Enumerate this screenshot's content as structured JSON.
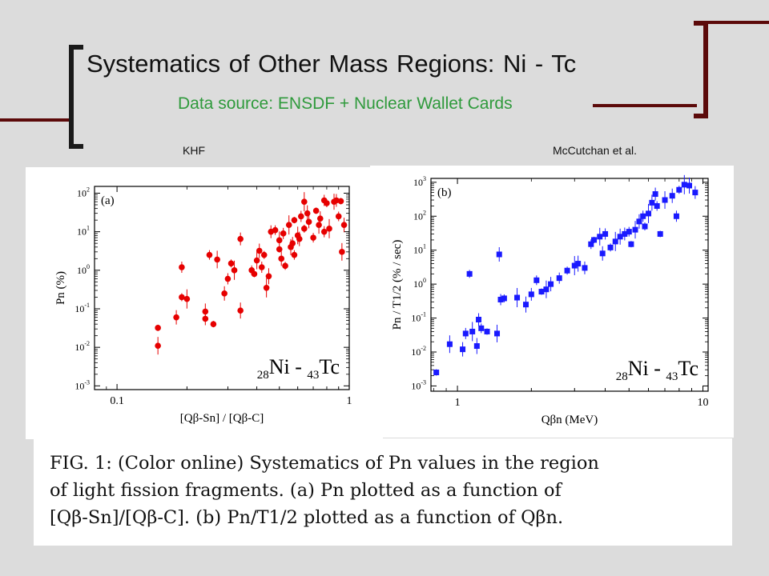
{
  "slide": {
    "title": "Systematics of Other Mass Regions: Ni - Tc",
    "subtitle": "Data source: ENSDF + Nuclear Wallet Cards",
    "colors": {
      "accent_bar": "#5c0a0a",
      "subtitle": "#2f9a3c",
      "background": "#dcdcdc"
    }
  },
  "panels": {
    "left_label": "KHF",
    "right_label": "McCutchan et al."
  },
  "caption": {
    "line1": "FIG. 1: (Color online) Systematics of Pn values in the region",
    "line2": "of light fission fragments. (a) Pn plotted as a function of",
    "line3": "[Qβ-Sn]/[Qβ-C]. (b) Pn/T1/2 plotted as a function of Qβn."
  },
  "chart_data": [
    {
      "type": "scatter",
      "panel_tag": "(a)",
      "annotation": "28Ni - 43Tc",
      "xlabel": "[Qβ-Sn] / [Qβ-C]",
      "ylabel": "Pn (%)",
      "xscale": "log",
      "yscale": "log",
      "xlim": [
        0.08,
        1.0
      ],
      "ylim": [
        0.0008,
        150
      ],
      "xticks": [
        "0.1",
        "1"
      ],
      "yticks": [
        "10^-3",
        "10^-2",
        "10^-1",
        "10^0",
        "10^1",
        "10^2"
      ],
      "marker_color": "#e60000",
      "points": [
        [
          0.15,
          0.032
        ],
        [
          0.15,
          0.011
        ],
        [
          0.18,
          0.06
        ],
        [
          0.19,
          1.2
        ],
        [
          0.19,
          0.2
        ],
        [
          0.2,
          0.18
        ],
        [
          0.24,
          0.085
        ],
        [
          0.24,
          0.055
        ],
        [
          0.25,
          2.5
        ],
        [
          0.26,
          0.04
        ],
        [
          0.27,
          1.9
        ],
        [
          0.29,
          0.25
        ],
        [
          0.3,
          0.6
        ],
        [
          0.31,
          1.5
        ],
        [
          0.32,
          1.0
        ],
        [
          0.34,
          0.09
        ],
        [
          0.34,
          6.5
        ],
        [
          0.38,
          1.0
        ],
        [
          0.39,
          0.8
        ],
        [
          0.4,
          1.8
        ],
        [
          0.41,
          3.2
        ],
        [
          0.42,
          1.2
        ],
        [
          0.43,
          2.5
        ],
        [
          0.44,
          0.35
        ],
        [
          0.45,
          0.7
        ],
        [
          0.46,
          10
        ],
        [
          0.48,
          11
        ],
        [
          0.5,
          3.5
        ],
        [
          0.5,
          6
        ],
        [
          0.51,
          2
        ],
        [
          0.52,
          9
        ],
        [
          0.53,
          1.3
        ],
        [
          0.55,
          15
        ],
        [
          0.56,
          4
        ],
        [
          0.57,
          5
        ],
        [
          0.58,
          2.5
        ],
        [
          0.58,
          20
        ],
        [
          0.6,
          8
        ],
        [
          0.61,
          6.5
        ],
        [
          0.62,
          25
        ],
        [
          0.64,
          12
        ],
        [
          0.64,
          60
        ],
        [
          0.66,
          30
        ],
        [
          0.67,
          18
        ],
        [
          0.7,
          7
        ],
        [
          0.72,
          35
        ],
        [
          0.74,
          15
        ],
        [
          0.75,
          22
        ],
        [
          0.78,
          10
        ],
        [
          0.8,
          55
        ],
        [
          0.82,
          12
        ],
        [
          0.86,
          60
        ],
        [
          0.88,
          65
        ],
        [
          0.9,
          25
        ],
        [
          0.92,
          62
        ],
        [
          0.93,
          3
        ],
        [
          0.95,
          15
        ],
        [
          0.78,
          65
        ]
      ]
    },
    {
      "type": "scatter",
      "panel_tag": "(b)",
      "annotation": "28Ni - 43Tc",
      "xlabel": "Qβn (MeV)",
      "ylabel": "Pn / T1/2 (% / sec)",
      "xscale": "log",
      "yscale": "log",
      "xlim": [
        0.78,
        10.5
      ],
      "ylim": [
        0.0007,
        1300
      ],
      "xticks": [
        "1",
        "10"
      ],
      "yticks": [
        "10^-3",
        "10^-2",
        "10^-1",
        "10^0",
        "10^1",
        "10^2",
        "10^3"
      ],
      "marker_color": "#1a1aff",
      "points": [
        [
          0.82,
          0.0025
        ],
        [
          0.93,
          0.017
        ],
        [
          1.05,
          0.012
        ],
        [
          1.08,
          0.035
        ],
        [
          1.12,
          2.0
        ],
        [
          1.15,
          0.04
        ],
        [
          1.2,
          0.015
        ],
        [
          1.22,
          0.09
        ],
        [
          1.25,
          0.05
        ],
        [
          1.32,
          0.04
        ],
        [
          1.45,
          0.035
        ],
        [
          1.48,
          7.5
        ],
        [
          1.5,
          0.35
        ],
        [
          1.55,
          0.38
        ],
        [
          1.75,
          0.4
        ],
        [
          1.9,
          0.25
        ],
        [
          2.0,
          0.5
        ],
        [
          2.1,
          1.3
        ],
        [
          2.2,
          0.6
        ],
        [
          2.3,
          0.7
        ],
        [
          2.4,
          1.0
        ],
        [
          2.6,
          1.5
        ],
        [
          2.8,
          2.5
        ],
        [
          3.0,
          3.5
        ],
        [
          3.1,
          4.0
        ],
        [
          3.3,
          3.0
        ],
        [
          3.5,
          15
        ],
        [
          3.6,
          20
        ],
        [
          3.8,
          25
        ],
        [
          3.9,
          8
        ],
        [
          4.0,
          30
        ],
        [
          4.2,
          12
        ],
        [
          4.4,
          18
        ],
        [
          4.6,
          25
        ],
        [
          4.8,
          30
        ],
        [
          5.0,
          35
        ],
        [
          5.1,
          15
        ],
        [
          5.3,
          40
        ],
        [
          5.5,
          70
        ],
        [
          5.7,
          100
        ],
        [
          5.8,
          50
        ],
        [
          6.0,
          120
        ],
        [
          6.2,
          250
        ],
        [
          6.4,
          450
        ],
        [
          6.5,
          200
        ],
        [
          6.7,
          30
        ],
        [
          7.0,
          300
        ],
        [
          7.5,
          400
        ],
        [
          7.8,
          100
        ],
        [
          8.0,
          600
        ],
        [
          8.4,
          850
        ],
        [
          8.8,
          800
        ],
        [
          9.3,
          500
        ]
      ]
    }
  ]
}
